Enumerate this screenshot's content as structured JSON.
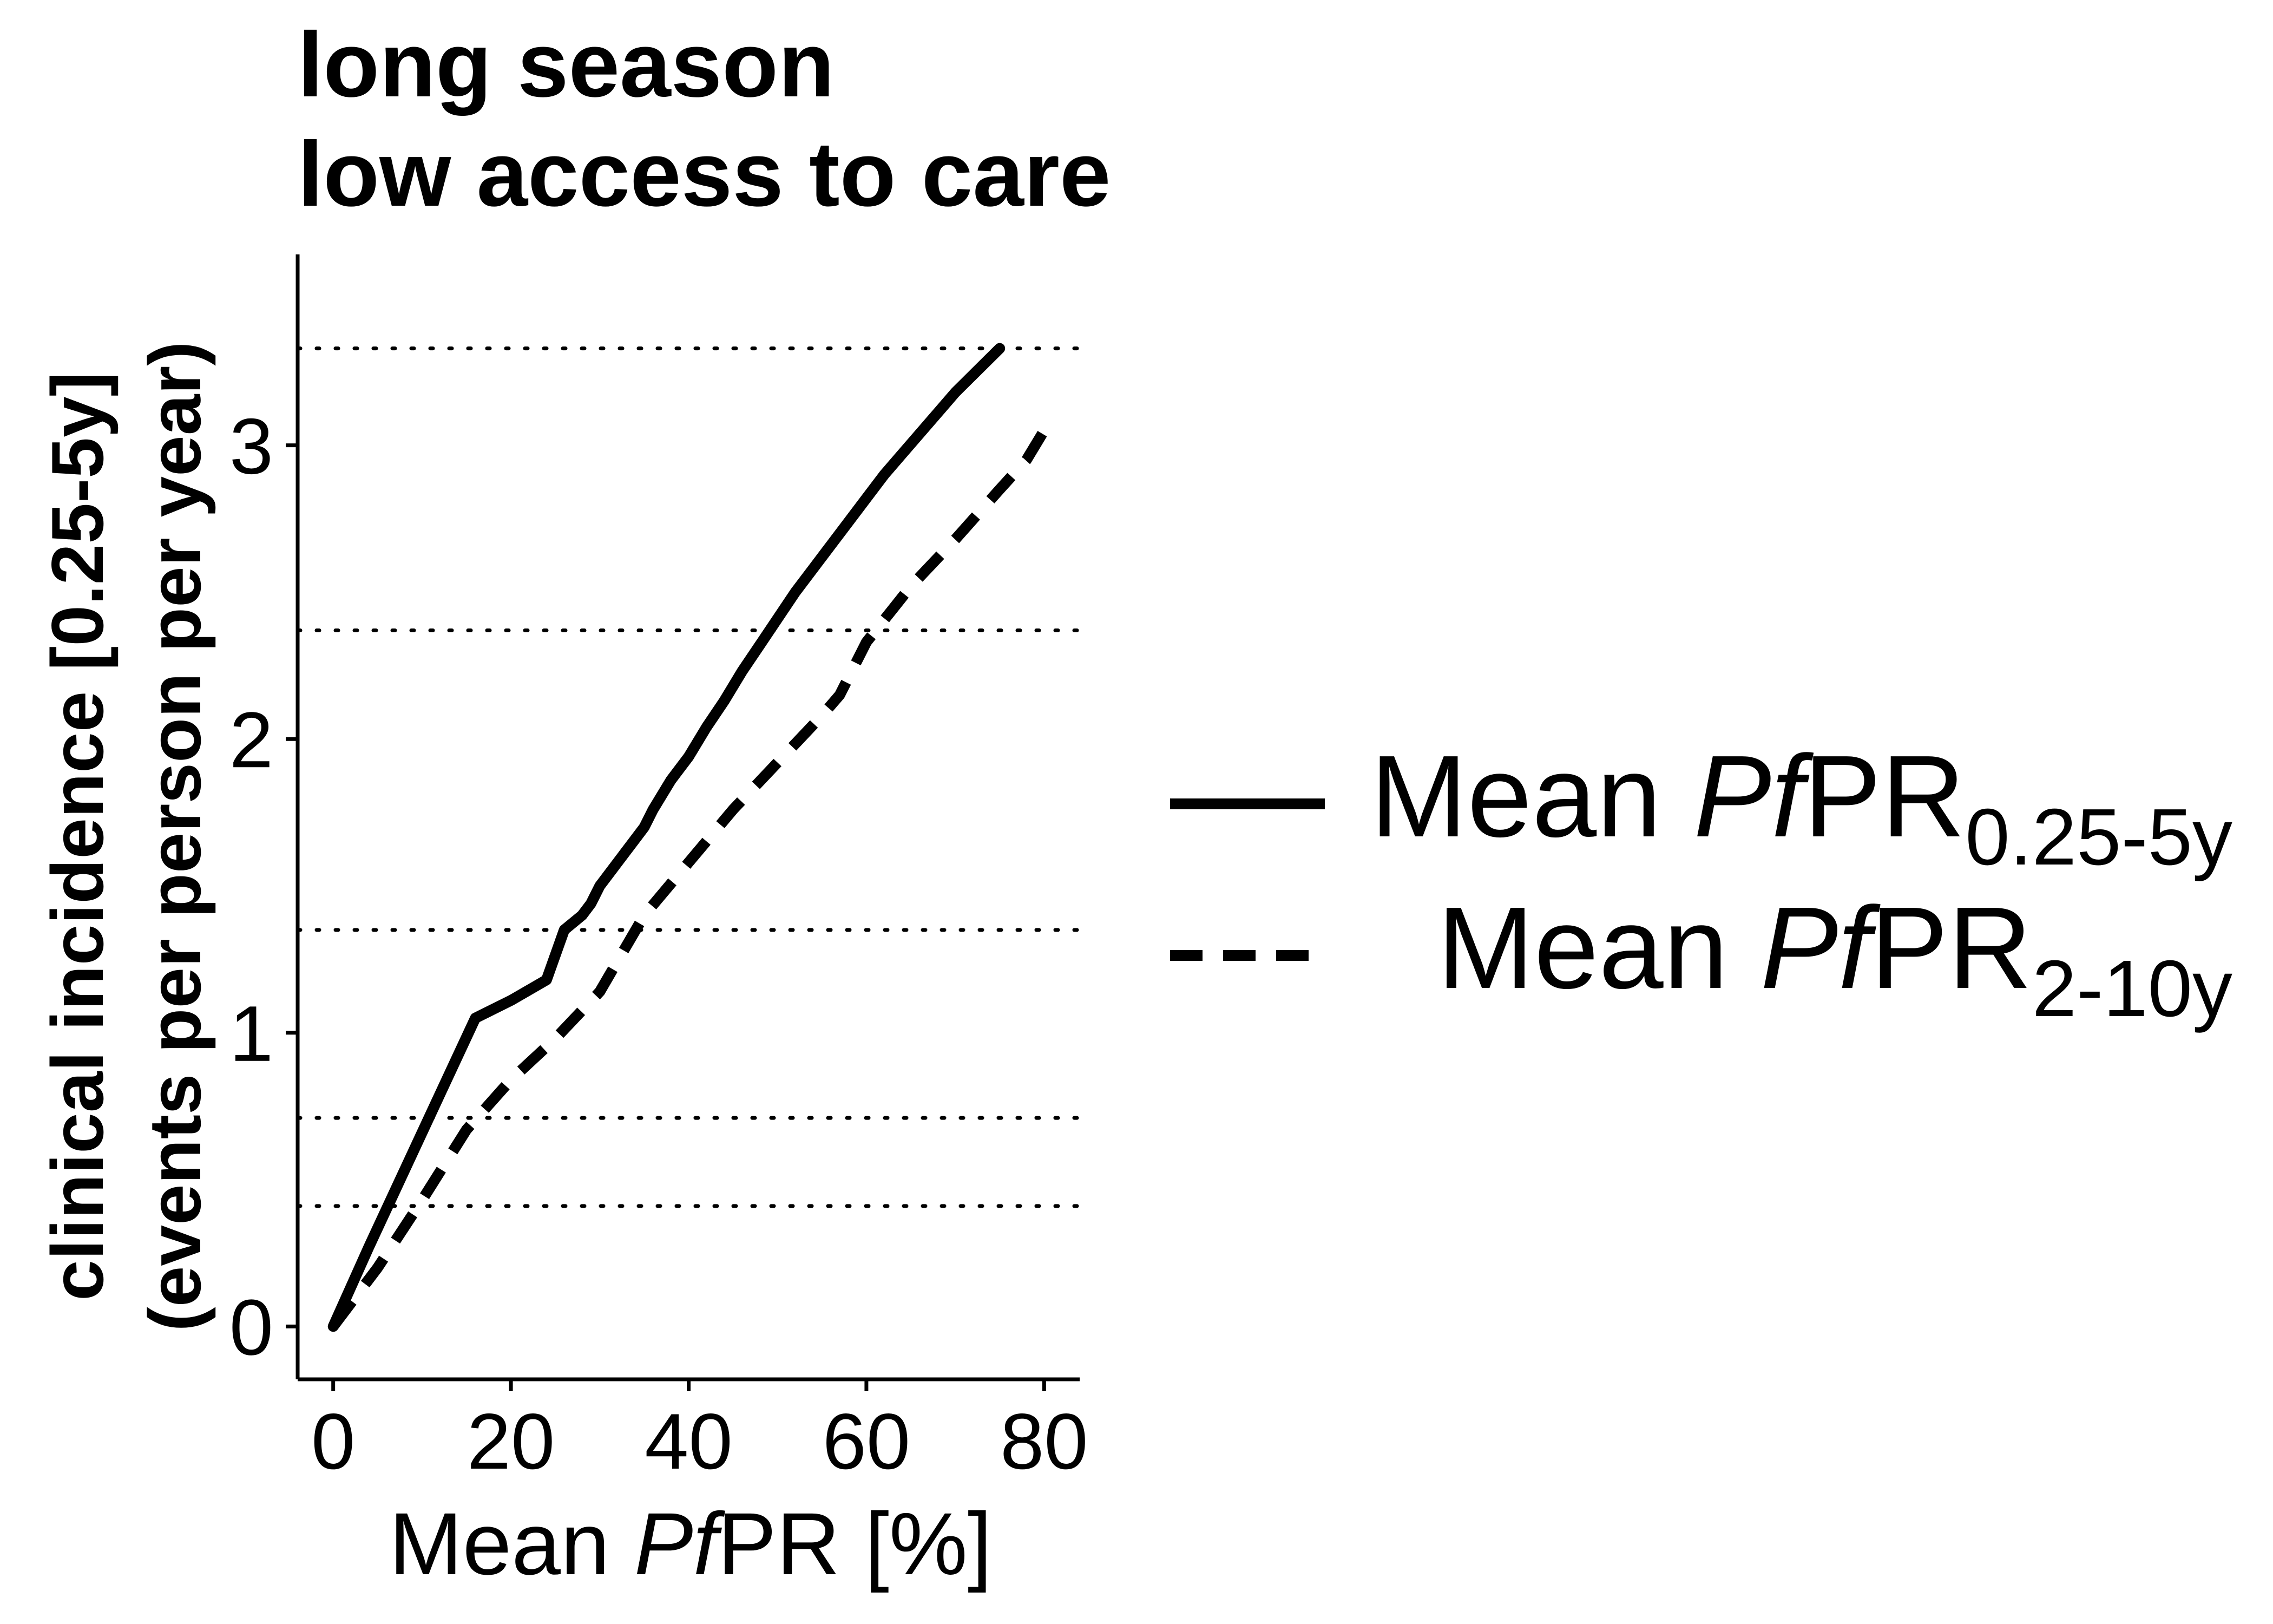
{
  "chart_data": {
    "type": "line",
    "title": [
      "long season",
      "low access to care"
    ],
    "xlabel": {
      "prefix": "Mean ",
      "italic": "Pf",
      "suffix": "PR [%]"
    },
    "ylabel": [
      "clinical incidence [0.25-5y]",
      "(events per person per year)"
    ],
    "xlim": [
      -4,
      84
    ],
    "ylim": [
      -0.18,
      3.65
    ],
    "x_ticks": [
      0,
      20,
      40,
      60,
      80
    ],
    "y_ticks": [
      0,
      1,
      2,
      3
    ],
    "grid": "none",
    "reference_lines": [
      0.41,
      0.71,
      1.35,
      2.37,
      3.33
    ],
    "legend_position": "right",
    "series": [
      {
        "name": {
          "prefix": "Mean ",
          "italic": "Pf",
          "base": "PR",
          "sub": "0.25-5y"
        },
        "style": "solid",
        "x": [
          0,
          4,
          8,
          12,
          16,
          20,
          24,
          26,
          28,
          29,
          30,
          32,
          34,
          35,
          36,
          38,
          40,
          42,
          44,
          46,
          48,
          50,
          52,
          54,
          56,
          58,
          60,
          62,
          64,
          66,
          68,
          70,
          72,
          74,
          75
        ],
        "y": [
          0,
          0.27,
          0.53,
          0.79,
          1.05,
          1.11,
          1.18,
          1.35,
          1.4,
          1.44,
          1.5,
          1.58,
          1.66,
          1.7,
          1.76,
          1.86,
          1.94,
          2.04,
          2.13,
          2.23,
          2.32,
          2.41,
          2.5,
          2.58,
          2.66,
          2.74,
          2.82,
          2.9,
          2.97,
          3.04,
          3.11,
          3.18,
          3.24,
          3.3,
          3.33
        ]
      },
      {
        "name": {
          "prefix": "Mean ",
          "italic": "Pf",
          "base": "PR",
          "sub": "2-10y"
        },
        "style": "dashed",
        "x": [
          0,
          5,
          10,
          15,
          20,
          25,
          30,
          35,
          40,
          45,
          50,
          55,
          57,
          60,
          65,
          70,
          75,
          78,
          80
        ],
        "y": [
          0,
          0.2,
          0.43,
          0.67,
          0.84,
          0.98,
          1.14,
          1.4,
          1.58,
          1.76,
          1.92,
          2.08,
          2.15,
          2.33,
          2.52,
          2.68,
          2.85,
          2.95,
          3.05
        ]
      }
    ]
  }
}
